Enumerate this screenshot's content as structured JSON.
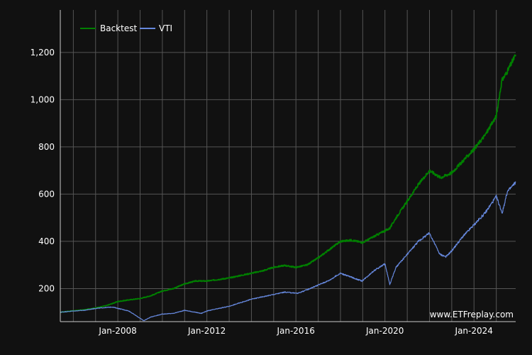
{
  "chart_data": {
    "type": "line",
    "title": "",
    "xlabel": "",
    "ylabel": "",
    "xlim": [
      "2005-06-01",
      "2025-11-15"
    ],
    "ylim": [
      60,
      1380
    ],
    "grid": true,
    "legend_position": "top-left",
    "x_ticks": [
      "Jan-2008",
      "Jan-2012",
      "Jan-2016",
      "Jan-2020",
      "Jan-2024"
    ],
    "y_ticks": [
      "200",
      "400",
      "600",
      "800",
      "1,000",
      "1,200"
    ],
    "y_tick_values": [
      200,
      400,
      600,
      800,
      1000,
      1200
    ],
    "x_tick_dates": [
      "2008-01-01",
      "2012-01-01",
      "2016-01-01",
      "2020-01-01",
      "2024-01-01"
    ],
    "series": [
      {
        "name": "Backtest",
        "color": "#008000",
        "points": [
          [
            "2005-06-01",
            100
          ],
          [
            "2006-01-01",
            106
          ],
          [
            "2006-07-01",
            110
          ],
          [
            "2007-01-01",
            118
          ],
          [
            "2007-07-01",
            128
          ],
          [
            "2008-01-01",
            145
          ],
          [
            "2008-07-01",
            152
          ],
          [
            "2009-01-01",
            158
          ],
          [
            "2009-07-01",
            170
          ],
          [
            "2010-01-01",
            190
          ],
          [
            "2010-07-01",
            200
          ],
          [
            "2011-01-01",
            220
          ],
          [
            "2011-07-01",
            232
          ],
          [
            "2012-01-01",
            232
          ],
          [
            "2012-07-01",
            238
          ],
          [
            "2013-01-01",
            245
          ],
          [
            "2013-07-01",
            255
          ],
          [
            "2014-01-01",
            265
          ],
          [
            "2014-07-01",
            275
          ],
          [
            "2015-01-01",
            290
          ],
          [
            "2015-07-01",
            298
          ],
          [
            "2016-01-01",
            290
          ],
          [
            "2016-07-01",
            300
          ],
          [
            "2017-01-01",
            330
          ],
          [
            "2017-07-01",
            365
          ],
          [
            "2018-01-01",
            400
          ],
          [
            "2018-07-01",
            405
          ],
          [
            "2019-01-01",
            395
          ],
          [
            "2019-07-01",
            420
          ],
          [
            "2020-01-01",
            445
          ],
          [
            "2020-03-20",
            455
          ],
          [
            "2020-07-01",
            500
          ],
          [
            "2021-01-01",
            570
          ],
          [
            "2021-07-01",
            640
          ],
          [
            "2022-01-01",
            700
          ],
          [
            "2022-07-01",
            670
          ],
          [
            "2023-01-01",
            690
          ],
          [
            "2023-07-01",
            740
          ],
          [
            "2024-01-01",
            790
          ],
          [
            "2024-07-01",
            850
          ],
          [
            "2025-01-01",
            930
          ],
          [
            "2025-04-01",
            1080
          ],
          [
            "2025-07-01",
            1120
          ],
          [
            "2025-11-15",
            1190
          ]
        ]
      },
      {
        "name": "VTI",
        "color": "#6688dd",
        "points": [
          [
            "2005-06-01",
            100
          ],
          [
            "2006-01-01",
            105
          ],
          [
            "2006-07-01",
            108
          ],
          [
            "2007-01-01",
            116
          ],
          [
            "2007-10-01",
            122
          ],
          [
            "2008-07-01",
            105
          ],
          [
            "2009-03-01",
            64
          ],
          [
            "2009-07-01",
            80
          ],
          [
            "2010-01-01",
            92
          ],
          [
            "2010-07-01",
            95
          ],
          [
            "2011-01-01",
            108
          ],
          [
            "2011-10-01",
            95
          ],
          [
            "2012-01-01",
            105
          ],
          [
            "2012-07-01",
            115
          ],
          [
            "2013-01-01",
            125
          ],
          [
            "2013-07-01",
            140
          ],
          [
            "2014-01-01",
            155
          ],
          [
            "2014-07-01",
            165
          ],
          [
            "2015-01-01",
            175
          ],
          [
            "2015-07-01",
            185
          ],
          [
            "2016-02-01",
            180
          ],
          [
            "2016-07-01",
            195
          ],
          [
            "2017-01-01",
            215
          ],
          [
            "2017-07-01",
            235
          ],
          [
            "2018-01-01",
            265
          ],
          [
            "2018-12-20",
            232
          ],
          [
            "2019-07-01",
            275
          ],
          [
            "2020-01-01",
            305
          ],
          [
            "2020-03-20",
            218
          ],
          [
            "2020-07-01",
            290
          ],
          [
            "2021-01-01",
            345
          ],
          [
            "2021-07-01",
            400
          ],
          [
            "2022-01-01",
            435
          ],
          [
            "2022-06-20",
            345
          ],
          [
            "2022-10-01",
            335
          ],
          [
            "2023-01-01",
            360
          ],
          [
            "2023-07-01",
            420
          ],
          [
            "2024-01-01",
            470
          ],
          [
            "2024-07-01",
            520
          ],
          [
            "2025-01-01",
            590
          ],
          [
            "2025-04-08",
            520
          ],
          [
            "2025-07-01",
            610
          ],
          [
            "2025-11-15",
            650
          ]
        ]
      }
    ]
  },
  "watermark": "www.ETFreplay.com"
}
